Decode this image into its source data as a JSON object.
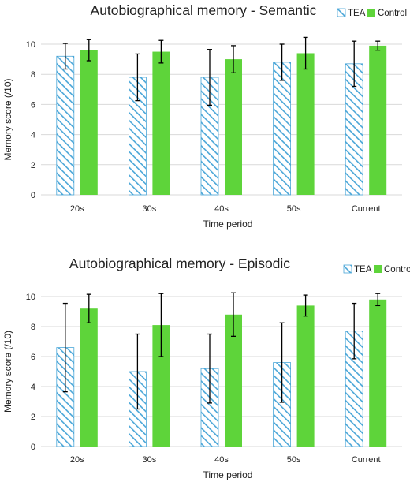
{
  "chart_data": [
    {
      "type": "bar",
      "title": "Autobiographical memory - Semantic",
      "xlabel": "Time period",
      "ylabel": "Memory score (/10)",
      "ylim": [
        0,
        10
      ],
      "yticks": [
        "0",
        "2",
        "4",
        "6",
        "8",
        "10"
      ],
      "categories": [
        "20s",
        "30s",
        "40s",
        "50s",
        "Current"
      ],
      "grid": true,
      "legend_position": "top-right",
      "series": [
        {
          "name": "TEA",
          "color": "#4aa6d8",
          "pattern": "diagonal-hatch",
          "values": [
            9.2,
            7.8,
            7.8,
            8.8,
            8.7
          ],
          "errors": [
            0.85,
            1.55,
            1.85,
            1.2,
            1.5
          ]
        },
        {
          "name": "Control",
          "color": "#5ed43a",
          "pattern": "solid",
          "values": [
            9.6,
            9.5,
            9.0,
            9.4,
            9.9
          ],
          "errors": [
            0.7,
            0.75,
            0.9,
            1.05,
            0.3
          ]
        }
      ]
    },
    {
      "type": "bar",
      "title": "Autobiographical memory - Episodic",
      "xlabel": "Time period",
      "ylabel": "Memory score (/10)",
      "ylim": [
        0,
        10
      ],
      "yticks": [
        "0",
        "2",
        "4",
        "6",
        "8",
        "10"
      ],
      "categories": [
        "20s",
        "30s",
        "40s",
        "50s",
        "Current"
      ],
      "grid": true,
      "legend_position": "top-right",
      "series": [
        {
          "name": "TEA",
          "color": "#4aa6d8",
          "pattern": "diagonal-hatch",
          "values": [
            6.6,
            5.0,
            5.2,
            5.6,
            7.7
          ],
          "errors": [
            2.95,
            2.5,
            2.3,
            2.65,
            1.85
          ]
        },
        {
          "name": "Control",
          "color": "#5ed43a",
          "pattern": "solid",
          "values": [
            9.2,
            8.1,
            8.8,
            9.4,
            9.8
          ],
          "errors": [
            0.95,
            2.1,
            1.45,
            0.7,
            0.4
          ]
        }
      ]
    }
  ]
}
